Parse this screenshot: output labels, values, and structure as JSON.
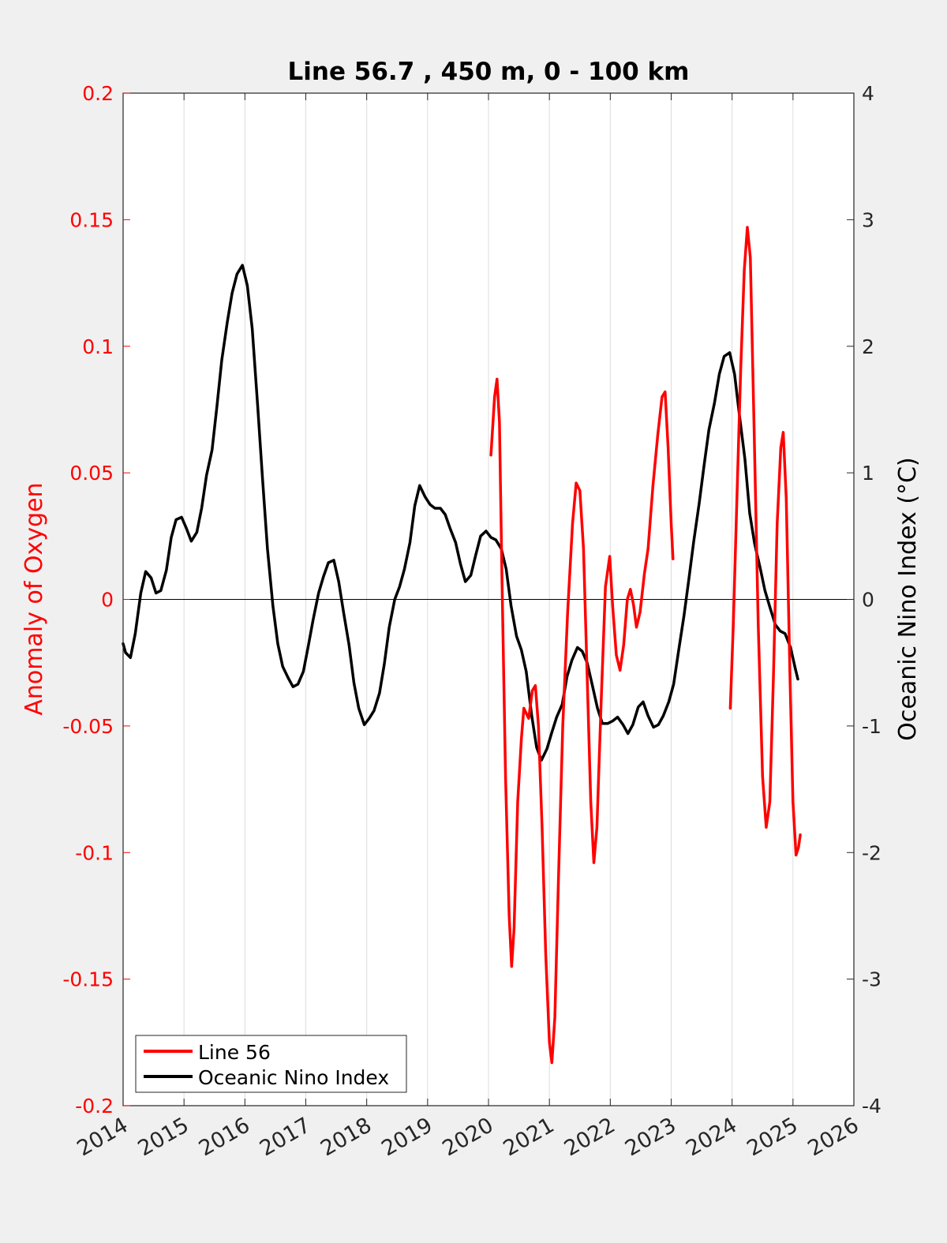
{
  "chart_data": {
    "type": "line",
    "title": "Line 56.7 , 450 m, 0 - 100 km",
    "xlabel": "",
    "ylabel_left": "Anomaly of Oxygen",
    "ylabel_right": "Oceanic Nino Index (°C)",
    "xlim": [
      2014,
      2026
    ],
    "ylim_left": [
      -0.2,
      0.2
    ],
    "ylim_right": [
      -4,
      4
    ],
    "x_ticks": [
      2014,
      2015,
      2016,
      2017,
      2018,
      2019,
      2020,
      2021,
      2022,
      2023,
      2024,
      2025,
      2026
    ],
    "x_tick_labels": [
      "2014",
      "2015",
      "2016",
      "2017",
      "2018",
      "2019",
      "2020",
      "2021",
      "2022",
      "2023",
      "2024",
      "2025",
      "2026"
    ],
    "y_left_ticks": [
      -0.2,
      -0.15,
      -0.1,
      -0.05,
      0,
      0.05,
      0.1,
      0.15,
      0.2
    ],
    "y_left_tick_labels": [
      "-0.2",
      "-0.15",
      "-0.1",
      "-0.05",
      "0",
      "0.05",
      "0.1",
      "0.15",
      "0.2"
    ],
    "y_right_ticks": [
      -4,
      -3,
      -2,
      -1,
      0,
      1,
      2,
      3,
      4
    ],
    "y_right_tick_labels": [
      "-4",
      "-3",
      "-2",
      "-1",
      "0",
      "1",
      "2",
      "3",
      "4"
    ],
    "grid": "vertical",
    "zero_line": true,
    "legend_position": "bottom-left",
    "series": [
      {
        "name": "Line 56",
        "axis": "left",
        "color": "#ff0000",
        "segments": [
          [
            [
              2020.04,
              0.057
            ],
            [
              2020.1,
              0.08
            ],
            [
              2020.14,
              0.087
            ],
            [
              2020.18,
              0.07
            ],
            [
              2020.22,
              0.01
            ],
            [
              2020.28,
              -0.07
            ],
            [
              2020.34,
              -0.125
            ],
            [
              2020.38,
              -0.145
            ],
            [
              2020.42,
              -0.13
            ],
            [
              2020.48,
              -0.08
            ],
            [
              2020.54,
              -0.055
            ],
            [
              2020.58,
              -0.043
            ],
            [
              2020.66,
              -0.047
            ],
            [
              2020.72,
              -0.036
            ],
            [
              2020.77,
              -0.034
            ],
            [
              2020.82,
              -0.05
            ],
            [
              2020.88,
              -0.09
            ],
            [
              2020.94,
              -0.14
            ],
            [
              2021.0,
              -0.175
            ],
            [
              2021.04,
              -0.183
            ],
            [
              2021.09,
              -0.165
            ],
            [
              2021.15,
              -0.11
            ],
            [
              2021.22,
              -0.05
            ],
            [
              2021.3,
              -0.005
            ],
            [
              2021.38,
              0.03
            ],
            [
              2021.44,
              0.046
            ],
            [
              2021.5,
              0.043
            ],
            [
              2021.56,
              0.02
            ],
            [
              2021.62,
              -0.03
            ],
            [
              2021.68,
              -0.08
            ],
            [
              2021.73,
              -0.104
            ],
            [
              2021.78,
              -0.09
            ],
            [
              2021.85,
              -0.04
            ],
            [
              2021.92,
              0.005
            ],
            [
              2021.99,
              0.017
            ],
            [
              2022.04,
              -0.003
            ],
            [
              2022.1,
              -0.022
            ],
            [
              2022.16,
              -0.028
            ],
            [
              2022.22,
              -0.018
            ],
            [
              2022.28,
              0.0
            ],
            [
              2022.33,
              0.004
            ],
            [
              2022.38,
              -0.002
            ],
            [
              2022.43,
              -0.011
            ],
            [
              2022.49,
              -0.005
            ],
            [
              2022.56,
              0.01
            ],
            [
              2022.62,
              0.02
            ],
            [
              2022.7,
              0.045
            ],
            [
              2022.78,
              0.065
            ],
            [
              2022.85,
              0.08
            ],
            [
              2022.9,
              0.082
            ],
            [
              2022.95,
              0.06
            ],
            [
              2023.0,
              0.03
            ],
            [
              2023.03,
              0.016
            ]
          ],
          [
            [
              2023.97,
              -0.043
            ],
            [
              2024.02,
              -0.01
            ],
            [
              2024.08,
              0.04
            ],
            [
              2024.14,
              0.09
            ],
            [
              2024.2,
              0.13
            ],
            [
              2024.25,
              0.147
            ],
            [
              2024.3,
              0.135
            ],
            [
              2024.36,
              0.07
            ],
            [
              2024.43,
              -0.01
            ],
            [
              2024.5,
              -0.07
            ],
            [
              2024.56,
              -0.09
            ],
            [
              2024.62,
              -0.08
            ],
            [
              2024.68,
              -0.03
            ],
            [
              2024.74,
              0.03
            ],
            [
              2024.8,
              0.06
            ],
            [
              2024.84,
              0.066
            ],
            [
              2024.89,
              0.04
            ],
            [
              2024.95,
              -0.03
            ],
            [
              2025.0,
              -0.08
            ],
            [
              2025.05,
              -0.101
            ],
            [
              2025.09,
              -0.098
            ],
            [
              2025.12,
              -0.093
            ]
          ]
        ]
      },
      {
        "name": "Oceanic Nino Index",
        "axis": "right",
        "color": "#000000",
        "segments": [
          [
            [
              2014.0,
              -0.35
            ],
            [
              2014.04,
              -0.42
            ],
            [
              2014.12,
              -0.46
            ],
            [
              2014.2,
              -0.27
            ],
            [
              2014.29,
              0.05
            ],
            [
              2014.37,
              0.22
            ],
            [
              2014.46,
              0.17
            ],
            [
              2014.54,
              0.05
            ],
            [
              2014.62,
              0.07
            ],
            [
              2014.71,
              0.23
            ],
            [
              2014.79,
              0.49
            ],
            [
              2014.87,
              0.63
            ],
            [
              2014.96,
              0.65
            ],
            [
              2015.04,
              0.56
            ],
            [
              2015.12,
              0.46
            ],
            [
              2015.21,
              0.53
            ],
            [
              2015.29,
              0.72
            ],
            [
              2015.37,
              0.98
            ],
            [
              2015.46,
              1.18
            ],
            [
              2015.54,
              1.52
            ],
            [
              2015.62,
              1.89
            ],
            [
              2015.71,
              2.19
            ],
            [
              2015.79,
              2.42
            ],
            [
              2015.87,
              2.57
            ],
            [
              2015.96,
              2.64
            ],
            [
              2016.04,
              2.48
            ],
            [
              2016.12,
              2.14
            ],
            [
              2016.21,
              1.53
            ],
            [
              2016.29,
              0.95
            ],
            [
              2016.37,
              0.4
            ],
            [
              2016.46,
              -0.05
            ],
            [
              2016.54,
              -0.35
            ],
            [
              2016.62,
              -0.53
            ],
            [
              2016.71,
              -0.62
            ],
            [
              2016.79,
              -0.69
            ],
            [
              2016.87,
              -0.67
            ],
            [
              2016.96,
              -0.57
            ],
            [
              2017.04,
              -0.37
            ],
            [
              2017.12,
              -0.16
            ],
            [
              2017.21,
              0.05
            ],
            [
              2017.29,
              0.18
            ],
            [
              2017.37,
              0.29
            ],
            [
              2017.46,
              0.31
            ],
            [
              2017.54,
              0.14
            ],
            [
              2017.62,
              -0.1
            ],
            [
              2017.71,
              -0.36
            ],
            [
              2017.79,
              -0.66
            ],
            [
              2017.87,
              -0.86
            ],
            [
              2017.96,
              -0.99
            ],
            [
              2018.04,
              -0.94
            ],
            [
              2018.12,
              -0.88
            ],
            [
              2018.21,
              -0.74
            ],
            [
              2018.29,
              -0.51
            ],
            [
              2018.37,
              -0.22
            ],
            [
              2018.46,
              0.0
            ],
            [
              2018.54,
              0.1
            ],
            [
              2018.62,
              0.24
            ],
            [
              2018.71,
              0.45
            ],
            [
              2018.79,
              0.74
            ],
            [
              2018.87,
              0.9
            ],
            [
              2018.96,
              0.81
            ],
            [
              2019.04,
              0.75
            ],
            [
              2019.12,
              0.72
            ],
            [
              2019.21,
              0.72
            ],
            [
              2019.29,
              0.67
            ],
            [
              2019.37,
              0.56
            ],
            [
              2019.46,
              0.45
            ],
            [
              2019.54,
              0.28
            ],
            [
              2019.62,
              0.14
            ],
            [
              2019.71,
              0.19
            ],
            [
              2019.79,
              0.35
            ],
            [
              2019.87,
              0.5
            ],
            [
              2019.96,
              0.54
            ],
            [
              2020.04,
              0.49
            ],
            [
              2020.12,
              0.47
            ],
            [
              2020.21,
              0.4
            ],
            [
              2020.29,
              0.24
            ],
            [
              2020.37,
              -0.05
            ],
            [
              2020.46,
              -0.29
            ],
            [
              2020.54,
              -0.4
            ],
            [
              2020.62,
              -0.57
            ],
            [
              2020.71,
              -0.92
            ],
            [
              2020.79,
              -1.17
            ],
            [
              2020.87,
              -1.27
            ],
            [
              2020.96,
              -1.18
            ],
            [
              2021.04,
              -1.05
            ],
            [
              2021.12,
              -0.93
            ],
            [
              2021.21,
              -0.83
            ],
            [
              2021.29,
              -0.61
            ],
            [
              2021.37,
              -0.48
            ],
            [
              2021.46,
              -0.38
            ],
            [
              2021.54,
              -0.41
            ],
            [
              2021.62,
              -0.5
            ],
            [
              2021.71,
              -0.69
            ],
            [
              2021.79,
              -0.86
            ],
            [
              2021.87,
              -0.98
            ],
            [
              2021.96,
              -0.98
            ],
            [
              2022.04,
              -0.96
            ],
            [
              2022.12,
              -0.93
            ],
            [
              2022.21,
              -0.99
            ],
            [
              2022.29,
              -1.06
            ],
            [
              2022.37,
              -0.99
            ],
            [
              2022.46,
              -0.85
            ],
            [
              2022.54,
              -0.81
            ],
            [
              2022.62,
              -0.92
            ],
            [
              2022.71,
              -1.01
            ],
            [
              2022.79,
              -0.99
            ],
            [
              2022.87,
              -0.92
            ],
            [
              2022.96,
              -0.81
            ],
            [
              2023.04,
              -0.67
            ],
            [
              2023.12,
              -0.41
            ],
            [
              2023.21,
              -0.13
            ],
            [
              2023.29,
              0.16
            ],
            [
              2023.37,
              0.46
            ],
            [
              2023.46,
              0.76
            ],
            [
              2023.54,
              1.06
            ],
            [
              2023.62,
              1.34
            ],
            [
              2023.71,
              1.55
            ],
            [
              2023.79,
              1.78
            ],
            [
              2023.87,
              1.92
            ],
            [
              2023.96,
              1.95
            ],
            [
              2024.04,
              1.78
            ],
            [
              2024.12,
              1.46
            ],
            [
              2024.21,
              1.11
            ],
            [
              2024.29,
              0.68
            ],
            [
              2024.37,
              0.44
            ],
            [
              2024.46,
              0.25
            ],
            [
              2024.54,
              0.07
            ],
            [
              2024.62,
              -0.06
            ],
            [
              2024.71,
              -0.2
            ],
            [
              2024.79,
              -0.25
            ],
            [
              2024.87,
              -0.27
            ],
            [
              2024.96,
              -0.38
            ],
            [
              2025.04,
              -0.55
            ],
            [
              2025.08,
              -0.63
            ]
          ]
        ]
      }
    ]
  }
}
